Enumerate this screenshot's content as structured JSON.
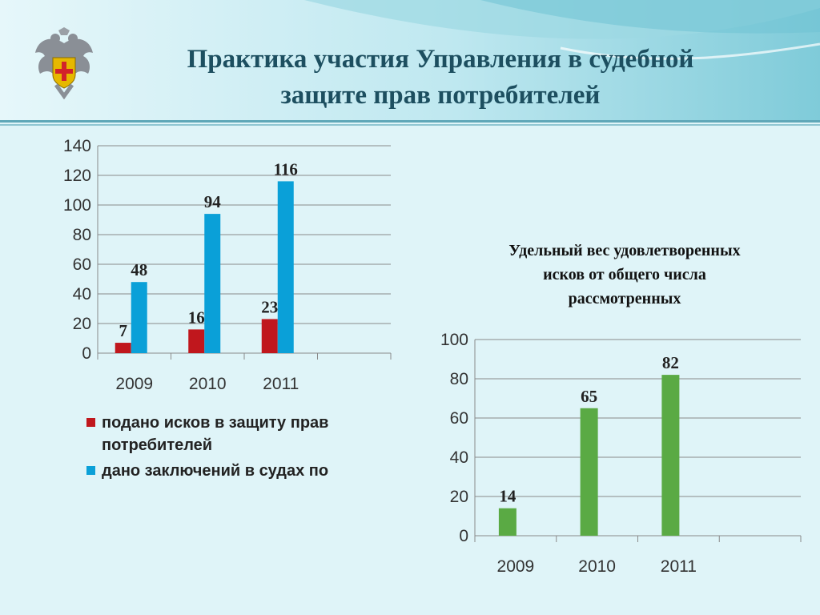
{
  "slide": {
    "title_line1": "Практика участия Управления в судебной",
    "title_line2": "защите прав потребителей"
  },
  "colors": {
    "background": "#dff4f8",
    "header_band": "#8fd0dc",
    "title": "#1d4f60",
    "red": "#c0171d",
    "blue": "#0aa0d8",
    "green": "#5aaa44"
  },
  "icons": {
    "emblem": "double-headed-eagle-emblem-icon"
  },
  "chart_data": [
    {
      "type": "bar",
      "title": "",
      "categories": [
        "2009",
        "2010",
        "2011"
      ],
      "ylim": [
        0,
        140
      ],
      "yticks": [
        "0",
        "20",
        "40",
        "60",
        "80",
        "100",
        "120",
        "140"
      ],
      "grid": true,
      "legend_position": "bottom",
      "series": [
        {
          "name": "подано исков в защиту прав потребителей",
          "values": [
            7,
            16,
            23
          ],
          "color": "#c0171d"
        },
        {
          "name": "дано заключений в судах по",
          "values": [
            48,
            94,
            116
          ],
          "color": "#0aa0d8"
        }
      ]
    },
    {
      "type": "bar",
      "title": "Удельный вес удовлетворенных исков от общего числа рассмотренных",
      "title_lines": [
        "Удельный вес удовлетворенных",
        "исков от общего числа",
        "рассмотренных"
      ],
      "categories": [
        "2009",
        "2010",
        "2011"
      ],
      "ylim": [
        0,
        100
      ],
      "yticks": [
        "0",
        "20",
        "40",
        "60",
        "80",
        "100"
      ],
      "grid": true,
      "series": [
        {
          "values": [
            14,
            65,
            82
          ],
          "color": "#5aaa44"
        }
      ]
    }
  ]
}
